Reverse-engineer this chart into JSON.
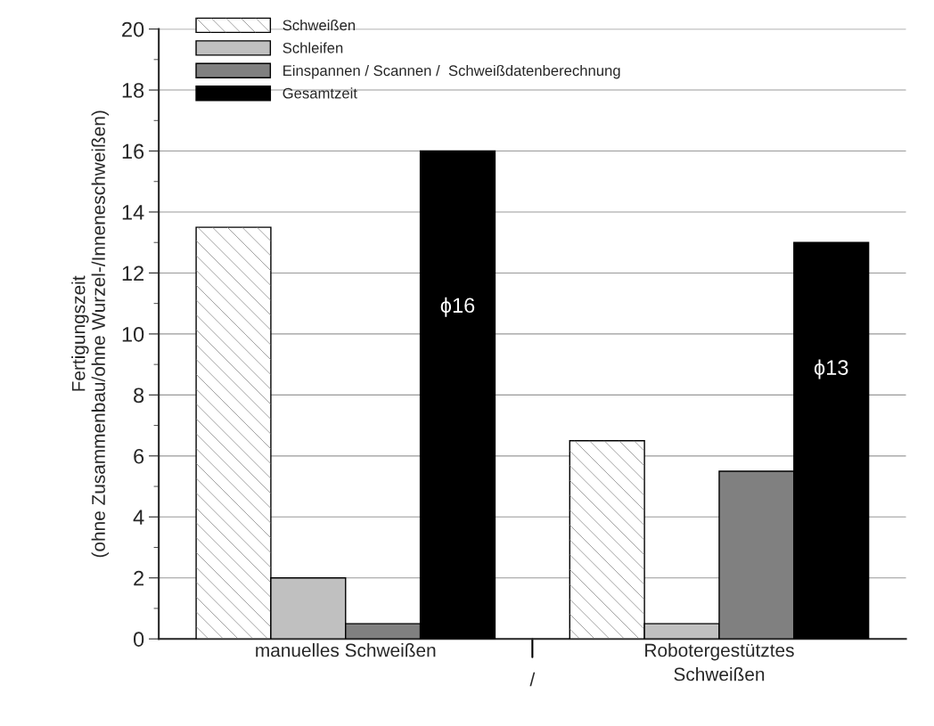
{
  "chart_data": {
    "type": "bar",
    "ylabel": "Fertigungszeit\n(ohne Zusammenbau/ohne Wurzel-/Inneneschweißen)",
    "categories": [
      "manuelles Schweißen",
      "Robotergestütztes\nSchweißen"
    ],
    "series": [
      {
        "name": "Schweißen",
        "color": "#ffffff",
        "values": [
          13.5,
          6.5
        ]
      },
      {
        "name": "Schleifen",
        "color": "#c0c0c0",
        "values": [
          2,
          0.5
        ]
      },
      {
        "name": "Einspannen / Scannen /  Schweißdatenberechnung",
        "color": "#808080",
        "values": [
          0.5,
          5.5
        ]
      },
      {
        "name": "Gesamtzeit",
        "color": "#000000",
        "values": [
          16,
          13
        ]
      }
    ],
    "ylim": [
      0,
      20
    ],
    "yticks": [
      0,
      2,
      4,
      6,
      8,
      10,
      12,
      14,
      16,
      18,
      20
    ],
    "grid": "y",
    "legend": "top left",
    "annotations": [
      "ϕ16",
      "ϕ13",
      "/"
    ]
  }
}
